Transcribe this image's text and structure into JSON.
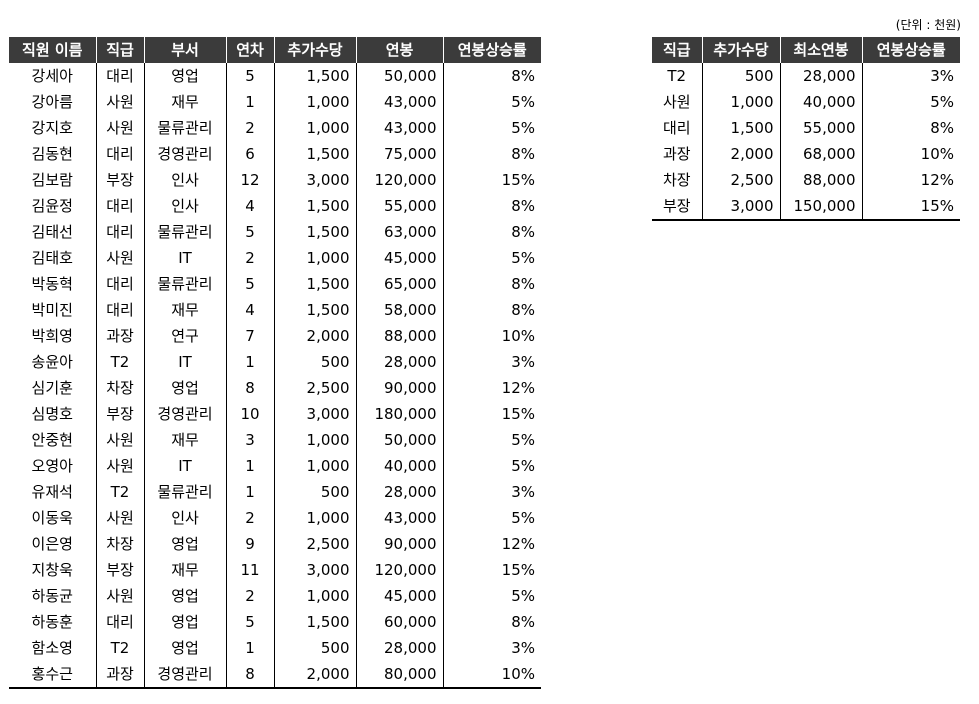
{
  "unit_note": "(단위 : 천원)",
  "employee_table": {
    "headers": [
      "직원 이름",
      "직급",
      "부서",
      "연차",
      "추가수당",
      "연봉",
      "연봉상승률"
    ],
    "rows": [
      [
        "강세아",
        "대리",
        "영업",
        "5",
        "1,500",
        "50,000",
        "8%"
      ],
      [
        "강아름",
        "사원",
        "재무",
        "1",
        "1,000",
        "43,000",
        "5%"
      ],
      [
        "강지호",
        "사원",
        "물류관리",
        "2",
        "1,000",
        "43,000",
        "5%"
      ],
      [
        "김동현",
        "대리",
        "경영관리",
        "6",
        "1,500",
        "75,000",
        "8%"
      ],
      [
        "김보람",
        "부장",
        "인사",
        "12",
        "3,000",
        "120,000",
        "15%"
      ],
      [
        "김윤정",
        "대리",
        "인사",
        "4",
        "1,500",
        "55,000",
        "8%"
      ],
      [
        "김태선",
        "대리",
        "물류관리",
        "5",
        "1,500",
        "63,000",
        "8%"
      ],
      [
        "김태호",
        "사원",
        "IT",
        "2",
        "1,000",
        "45,000",
        "5%"
      ],
      [
        "박동혁",
        "대리",
        "물류관리",
        "5",
        "1,500",
        "65,000",
        "8%"
      ],
      [
        "박미진",
        "대리",
        "재무",
        "4",
        "1,500",
        "58,000",
        "8%"
      ],
      [
        "박희영",
        "과장",
        "연구",
        "7",
        "2,000",
        "88,000",
        "10%"
      ],
      [
        "송윤아",
        "T2",
        "IT",
        "1",
        "500",
        "28,000",
        "3%"
      ],
      [
        "심기훈",
        "차장",
        "영업",
        "8",
        "2,500",
        "90,000",
        "12%"
      ],
      [
        "심명호",
        "부장",
        "경영관리",
        "10",
        "3,000",
        "180,000",
        "15%"
      ],
      [
        "안중현",
        "사원",
        "재무",
        "3",
        "1,000",
        "50,000",
        "5%"
      ],
      [
        "오영아",
        "사원",
        "IT",
        "1",
        "1,000",
        "40,000",
        "5%"
      ],
      [
        "유재석",
        "T2",
        "물류관리",
        "1",
        "500",
        "28,000",
        "3%"
      ],
      [
        "이동욱",
        "사원",
        "인사",
        "2",
        "1,000",
        "43,000",
        "5%"
      ],
      [
        "이은영",
        "차장",
        "영업",
        "9",
        "2,500",
        "90,000",
        "12%"
      ],
      [
        "지창욱",
        "부장",
        "재무",
        "11",
        "3,000",
        "120,000",
        "15%"
      ],
      [
        "하동균",
        "사원",
        "영업",
        "2",
        "1,000",
        "45,000",
        "5%"
      ],
      [
        "하동훈",
        "대리",
        "영업",
        "5",
        "1,500",
        "60,000",
        "8%"
      ],
      [
        "함소영",
        "T2",
        "영업",
        "1",
        "500",
        "28,000",
        "3%"
      ],
      [
        "홍수근",
        "과장",
        "경영관리",
        "8",
        "2,000",
        "80,000",
        "10%"
      ]
    ]
  },
  "rate_table": {
    "headers": [
      "직급",
      "추가수당",
      "최소연봉",
      "연봉상승률"
    ],
    "rows": [
      [
        "T2",
        "500",
        "28,000",
        "3%"
      ],
      [
        "사원",
        "1,000",
        "40,000",
        "5%"
      ],
      [
        "대리",
        "1,500",
        "55,000",
        "8%"
      ],
      [
        "과장",
        "2,000",
        "68,000",
        "10%"
      ],
      [
        "차장",
        "2,500",
        "88,000",
        "12%"
      ],
      [
        "부장",
        "3,000",
        "150,000",
        "15%"
      ]
    ]
  },
  "colors": {
    "header_bg": "#3b3b3b",
    "header_text": "#ffffff",
    "border": "#000000"
  }
}
